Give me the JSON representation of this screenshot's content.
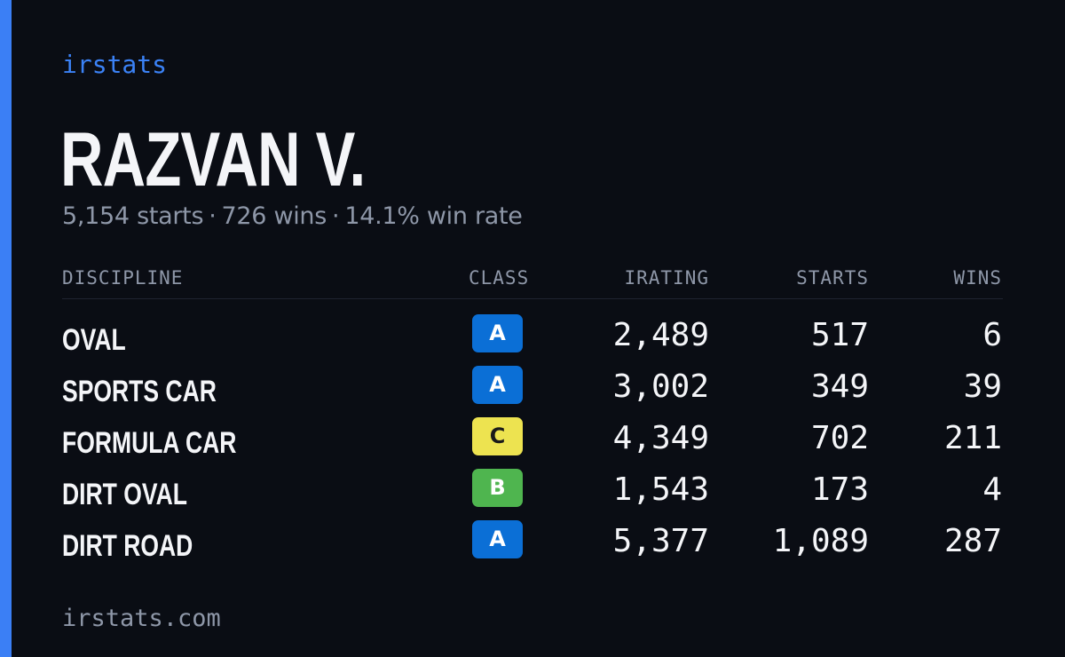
{
  "brand": "irstats",
  "driver": {
    "name": "RAZVAN V.",
    "starts": "5,154 starts",
    "wins": "726 wins",
    "win_rate": "14.1% win rate",
    "separator": "·"
  },
  "table": {
    "headers": {
      "discipline": "DISCIPLINE",
      "class": "CLASS",
      "irating": "IRATING",
      "starts": "STARTS",
      "wins": "WINS"
    },
    "rows": [
      {
        "discipline": "OVAL",
        "class": "A",
        "irating": "2,489",
        "starts": "517",
        "wins": "6"
      },
      {
        "discipline": "SPORTS CAR",
        "class": "A",
        "irating": "3,002",
        "starts": "349",
        "wins": "39"
      },
      {
        "discipline": "FORMULA CAR",
        "class": "C",
        "irating": "4,349",
        "starts": "702",
        "wins": "211"
      },
      {
        "discipline": "DIRT OVAL",
        "class": "B",
        "irating": "1,543",
        "starts": "173",
        "wins": "4"
      },
      {
        "discipline": "DIRT ROAD",
        "class": "A",
        "irating": "5,377",
        "starts": "1,089",
        "wins": "287"
      }
    ]
  },
  "class_colors": {
    "A": {
      "bg": "#0b6fd6",
      "fg": "#ffffff"
    },
    "B": {
      "bg": "#4fb54f",
      "fg": "#ffffff"
    },
    "C": {
      "bg": "#ede350",
      "fg": "#1a1a1a"
    }
  },
  "colors": {
    "accent": "#3b7ff5",
    "background": "#0a0d14"
  },
  "footer": "irstats.com"
}
